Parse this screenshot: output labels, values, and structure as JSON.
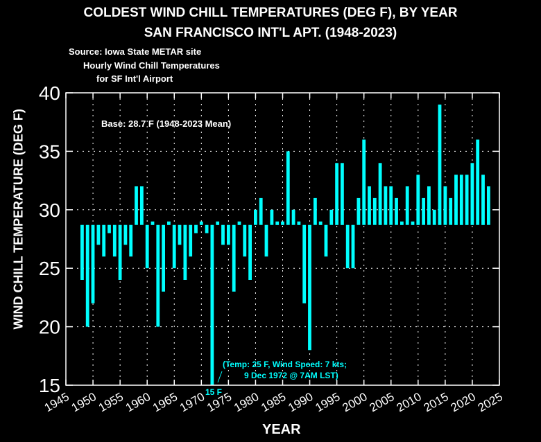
{
  "title_line1": "COLDEST WIND CHILL TEMPERATURES (DEG F), BY YEAR",
  "title_line2": "SAN FRANCISCO INT'L APT. (1948-2023)",
  "source_line1": "Source: Iowa State METAR site",
  "source_line2": "Hourly Wind Chill Temperatures",
  "source_line3": "for SF Int'l Airport",
  "base_label": "Base: 28.7 F (1948-2023 Mean)",
  "note_line1": "(Temp: 25 F, Wind Speed: 7 kts;",
  "note_line2": "9 Dec 1972 @ 7AM LST)",
  "note_value": "15 F",
  "colors": {
    "background": "#000000",
    "bar": "#00ffff",
    "axis": "#ffffff",
    "grid": "#ffffff",
    "text": "#ffffff"
  },
  "chart_data": {
    "type": "bar",
    "title": "COLDEST WIND CHILL TEMPERATURES (DEG F), BY YEAR — SAN FRANCISCO INT'L APT. (1948-2023)",
    "xlabel": "YEAR",
    "ylabel": "WIND CHILL TEMPERATURE (DEG F)",
    "base": 28.7,
    "xlim": [
      1945,
      2025
    ],
    "ylim": [
      15,
      40
    ],
    "xticks": [
      1945,
      1950,
      1955,
      1960,
      1965,
      1970,
      1975,
      1980,
      1985,
      1990,
      1995,
      2000,
      2005,
      2010,
      2015,
      2020,
      2025
    ],
    "yticks": [
      15,
      20,
      25,
      30,
      35,
      40
    ],
    "grid": true,
    "years": [
      1948,
      1949,
      1950,
      1951,
      1952,
      1953,
      1954,
      1955,
      1956,
      1957,
      1958,
      1959,
      1960,
      1961,
      1962,
      1963,
      1964,
      1965,
      1966,
      1967,
      1968,
      1969,
      1970,
      1971,
      1972,
      1973,
      1974,
      1975,
      1976,
      1977,
      1978,
      1979,
      1980,
      1981,
      1982,
      1983,
      1984,
      1985,
      1986,
      1987,
      1988,
      1989,
      1990,
      1991,
      1992,
      1993,
      1994,
      1995,
      1996,
      1997,
      1998,
      1999,
      2000,
      2001,
      2002,
      2003,
      2004,
      2005,
      2006,
      2007,
      2008,
      2009,
      2010,
      2011,
      2012,
      2013,
      2014,
      2015,
      2016,
      2017,
      2018,
      2019,
      2020,
      2021,
      2022,
      2023
    ],
    "values": [
      24,
      20,
      22,
      27,
      26,
      28,
      26,
      24,
      27,
      26,
      32,
      32,
      25,
      29,
      20,
      23,
      29,
      25,
      27,
      24,
      26,
      28,
      29,
      28,
      15,
      29,
      27,
      27,
      23,
      29,
      26,
      24,
      30,
      31,
      26,
      30,
      29,
      29,
      35,
      30,
      29,
      22,
      18,
      31,
      29,
      26,
      30,
      34,
      34,
      25,
      25,
      31,
      36,
      32,
      31,
      34,
      32,
      32,
      31,
      29,
      32,
      29,
      33,
      31,
      32,
      30,
      39,
      32,
      31,
      33,
      33,
      33,
      34,
      36,
      33,
      32
    ]
  }
}
